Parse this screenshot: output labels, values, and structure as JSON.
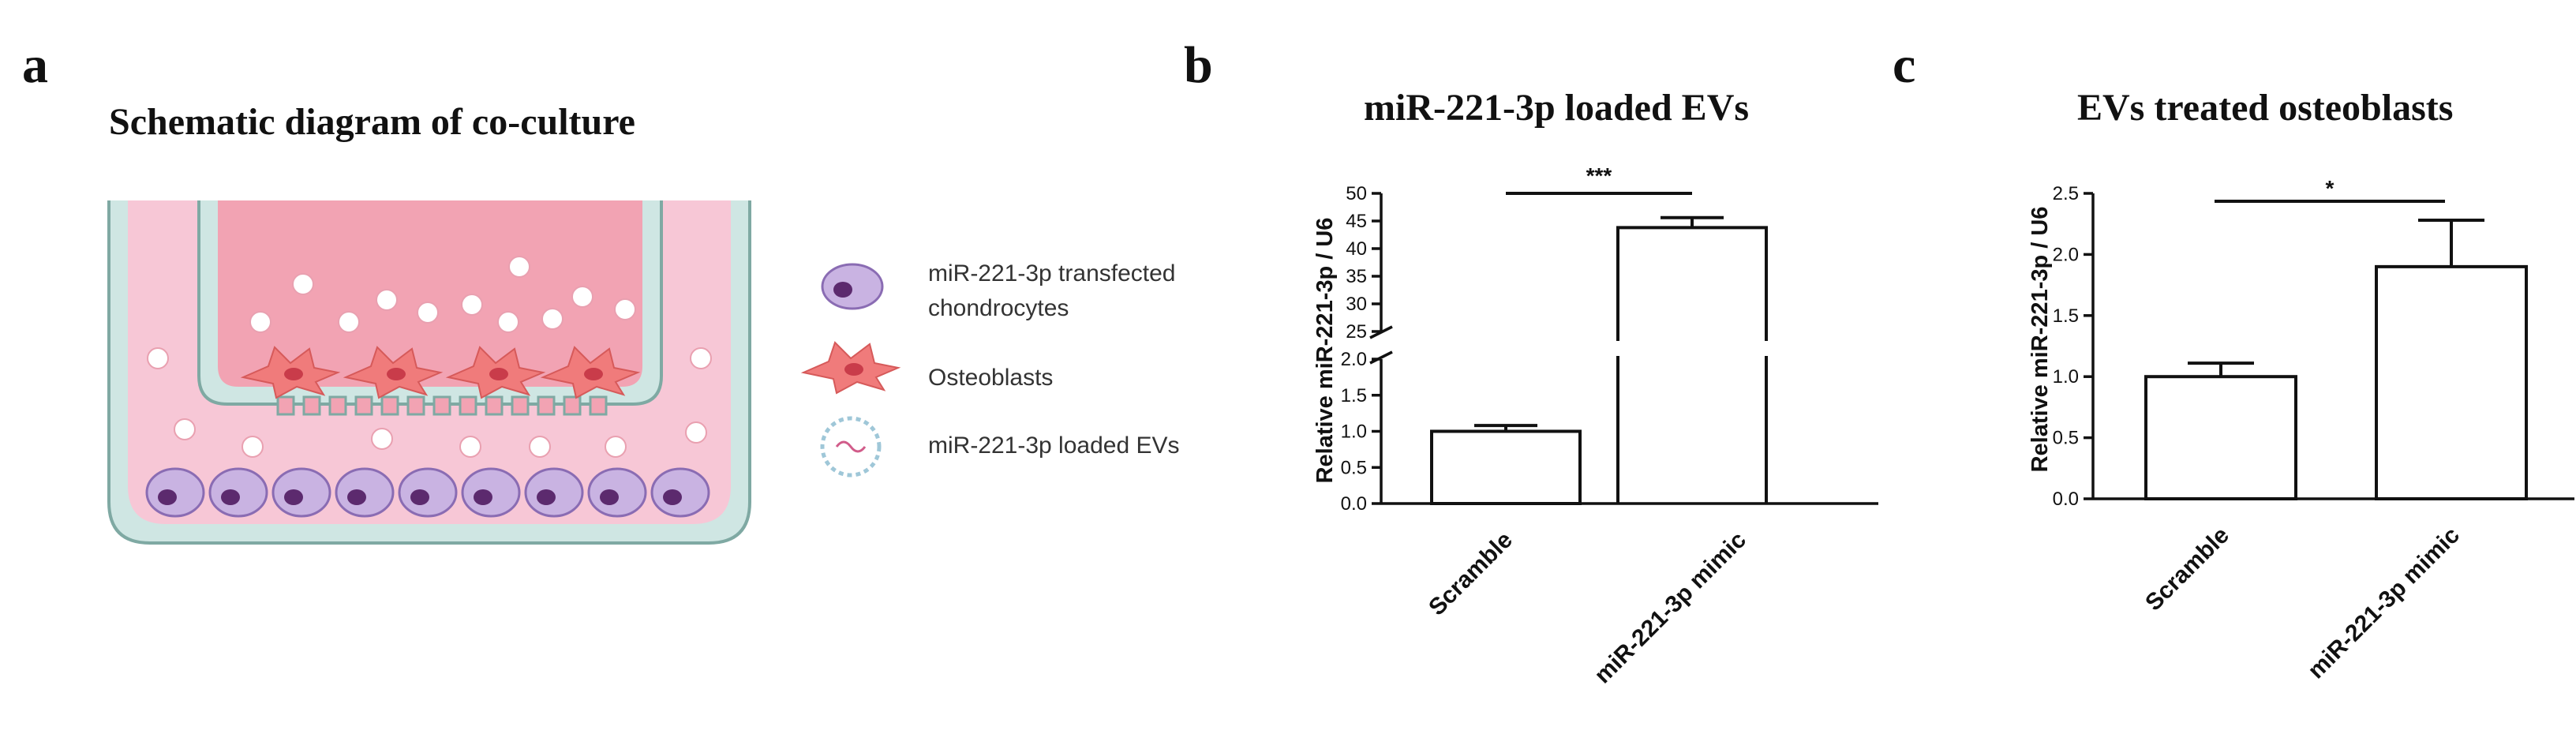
{
  "panels": {
    "a": {
      "letter": "a",
      "title": "Schematic diagram of co-culture",
      "legend": {
        "chondrocytes_line1": "miR-221-3p transfected",
        "chondrocytes_line2": "chondrocytes",
        "osteoblasts": "Osteoblasts",
        "evs": "miR-221-3p loaded EVs"
      },
      "colors": {
        "well": "#cfe6e3",
        "medium": "#f7c7d6",
        "insert_medium": "#f2a3b3",
        "chondrocyte": "#b79ad6",
        "chondrocyte_nucleus": "#5c2a6e",
        "osteoblast": "#f07b7b",
        "ev": "#ffffff"
      }
    },
    "b": {
      "letter": "b"
    },
    "c": {
      "letter": "c"
    }
  },
  "chart_data": [
    {
      "panel": "b",
      "type": "bar",
      "title": "miR-221-3p loaded EVs",
      "ylabel": "Relative miR-221-3p / U6",
      "xlabel": "",
      "categories": [
        "Scramble",
        "miR-221-3p mimic"
      ],
      "values": [
        1.0,
        43.8
      ],
      "errors": [
        0.08,
        1.8
      ],
      "axis_break": {
        "lower": [
          0,
          2.0
        ],
        "upper": [
          25,
          50
        ]
      },
      "yticks_lower": [
        "0.0",
        "0.5",
        "1.0",
        "1.5",
        "2.0"
      ],
      "yticks_upper": [
        "25",
        "30",
        "35",
        "40",
        "45",
        "50"
      ],
      "significance": "***"
    },
    {
      "panel": "c",
      "type": "bar",
      "title": "EVs treated osteoblasts",
      "ylabel": "Relative miR-221-3p / U6",
      "xlabel": "",
      "categories": [
        "Scramble",
        "miR-221-3p mimic"
      ],
      "values": [
        1.0,
        1.9
      ],
      "errors": [
        0.11,
        0.38
      ],
      "ylim": [
        0,
        2.5
      ],
      "yticks": [
        "0.0",
        "0.5",
        "1.0",
        "1.5",
        "2.0",
        "2.5"
      ],
      "significance": "*"
    }
  ]
}
